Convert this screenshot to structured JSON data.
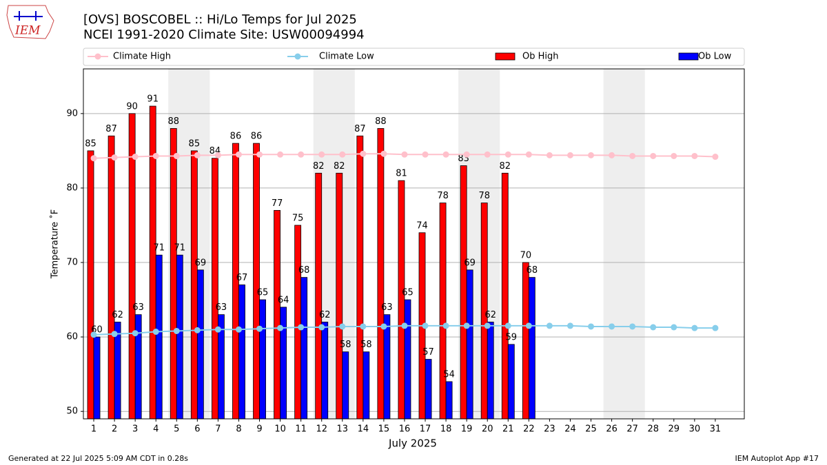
{
  "chart_data": {
    "type": "bar",
    "logo_text": "IEM",
    "title": "[OVS] BOSCOBEL :: Hi/Lo Temps for Jul 2025",
    "subtitle": "NCEI 1991-2020 Climate Site: USW00094994",
    "x_label": "July 2025",
    "y_label": "Temperature ˚F",
    "footer_left": "Generated at 22 Jul 2025 5:09 AM CDT in 0.28s",
    "footer_right": "IEM Autoplot App #17",
    "x": [
      1,
      2,
      3,
      4,
      5,
      6,
      7,
      8,
      9,
      10,
      11,
      12,
      13,
      14,
      15,
      16,
      17,
      18,
      19,
      20,
      21,
      22,
      23,
      24,
      25,
      26,
      27,
      28,
      29,
      30,
      31
    ],
    "xlim": [
      0.5,
      32.4
    ],
    "xticks": [
      1,
      2,
      3,
      4,
      5,
      6,
      7,
      8,
      9,
      10,
      11,
      12,
      13,
      14,
      15,
      16,
      17,
      18,
      19,
      20,
      21,
      22,
      23,
      24,
      25,
      26,
      27,
      28,
      29,
      30,
      31
    ],
    "ylim": [
      49,
      96
    ],
    "yticks": [
      50,
      60,
      70,
      80,
      90
    ],
    "grid": true,
    "shaded_spans": [
      [
        4.6,
        6.6
      ],
      [
        11.6,
        13.6
      ],
      [
        18.6,
        20.6
      ],
      [
        25.6,
        27.6
      ]
    ],
    "shade_color": "#eeeeee",
    "legend": "top",
    "series": [
      {
        "name": "Climate High",
        "style": "line",
        "color": "#ffc0cb",
        "values": [
          84.0,
          84.1,
          84.2,
          84.3,
          84.3,
          84.4,
          84.4,
          84.5,
          84.5,
          84.5,
          84.5,
          84.5,
          84.5,
          84.6,
          84.6,
          84.5,
          84.5,
          84.5,
          84.5,
          84.5,
          84.5,
          84.5,
          84.4,
          84.4,
          84.4,
          84.4,
          84.3,
          84.3,
          84.3,
          84.3,
          84.2
        ]
      },
      {
        "name": "Climate Low",
        "style": "line",
        "color": "#87ceeb",
        "values": [
          60.3,
          60.4,
          60.5,
          60.7,
          60.8,
          60.9,
          61.0,
          61.0,
          61.1,
          61.2,
          61.3,
          61.3,
          61.4,
          61.4,
          61.4,
          61.5,
          61.5,
          61.5,
          61.5,
          61.5,
          61.5,
          61.5,
          61.5,
          61.5,
          61.4,
          61.4,
          61.4,
          61.3,
          61.3,
          61.2,
          61.2
        ]
      },
      {
        "name": "Ob High",
        "style": "bar",
        "color": "#ff0000",
        "values": [
          85,
          87,
          90,
          91,
          88,
          85,
          84,
          86,
          86,
          77,
          75,
          82,
          82,
          87,
          88,
          81,
          74,
          78,
          83,
          78,
          82,
          70,
          null,
          null,
          null,
          null,
          null,
          null,
          null,
          null,
          null
        ]
      },
      {
        "name": "Ob Low",
        "style": "bar",
        "color": "#0000ff",
        "values": [
          60,
          62,
          63,
          71,
          71,
          69,
          63,
          67,
          65,
          64,
          68,
          62,
          58,
          58,
          63,
          65,
          57,
          54,
          69,
          62,
          59,
          68,
          null,
          null,
          null,
          null,
          null,
          null,
          null,
          null,
          null
        ]
      }
    ]
  }
}
